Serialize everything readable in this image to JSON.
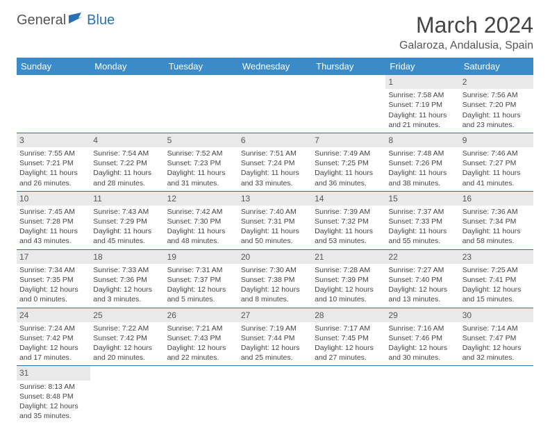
{
  "logo": {
    "part1": "General",
    "part2": "Blue"
  },
  "title": "March 2024",
  "location": "Galaroza, Andalusia, Spain",
  "header_bg": "#3b8bc9",
  "rule_color": "#2a6fb5",
  "daynum_bg": "#e9e9e9",
  "text_color": "#444444",
  "weekdays": [
    "Sunday",
    "Monday",
    "Tuesday",
    "Wednesday",
    "Thursday",
    "Friday",
    "Saturday"
  ],
  "weeks": [
    [
      null,
      null,
      null,
      null,
      null,
      {
        "n": "1",
        "sr": "Sunrise: 7:58 AM",
        "ss": "Sunset: 7:19 PM",
        "d1": "Daylight: 11 hours",
        "d2": "and 21 minutes."
      },
      {
        "n": "2",
        "sr": "Sunrise: 7:56 AM",
        "ss": "Sunset: 7:20 PM",
        "d1": "Daylight: 11 hours",
        "d2": "and 23 minutes."
      }
    ],
    [
      {
        "n": "3",
        "sr": "Sunrise: 7:55 AM",
        "ss": "Sunset: 7:21 PM",
        "d1": "Daylight: 11 hours",
        "d2": "and 26 minutes."
      },
      {
        "n": "4",
        "sr": "Sunrise: 7:54 AM",
        "ss": "Sunset: 7:22 PM",
        "d1": "Daylight: 11 hours",
        "d2": "and 28 minutes."
      },
      {
        "n": "5",
        "sr": "Sunrise: 7:52 AM",
        "ss": "Sunset: 7:23 PM",
        "d1": "Daylight: 11 hours",
        "d2": "and 31 minutes."
      },
      {
        "n": "6",
        "sr": "Sunrise: 7:51 AM",
        "ss": "Sunset: 7:24 PM",
        "d1": "Daylight: 11 hours",
        "d2": "and 33 minutes."
      },
      {
        "n": "7",
        "sr": "Sunrise: 7:49 AM",
        "ss": "Sunset: 7:25 PM",
        "d1": "Daylight: 11 hours",
        "d2": "and 36 minutes."
      },
      {
        "n": "8",
        "sr": "Sunrise: 7:48 AM",
        "ss": "Sunset: 7:26 PM",
        "d1": "Daylight: 11 hours",
        "d2": "and 38 minutes."
      },
      {
        "n": "9",
        "sr": "Sunrise: 7:46 AM",
        "ss": "Sunset: 7:27 PM",
        "d1": "Daylight: 11 hours",
        "d2": "and 41 minutes."
      }
    ],
    [
      {
        "n": "10",
        "sr": "Sunrise: 7:45 AM",
        "ss": "Sunset: 7:28 PM",
        "d1": "Daylight: 11 hours",
        "d2": "and 43 minutes."
      },
      {
        "n": "11",
        "sr": "Sunrise: 7:43 AM",
        "ss": "Sunset: 7:29 PM",
        "d1": "Daylight: 11 hours",
        "d2": "and 45 minutes."
      },
      {
        "n": "12",
        "sr": "Sunrise: 7:42 AM",
        "ss": "Sunset: 7:30 PM",
        "d1": "Daylight: 11 hours",
        "d2": "and 48 minutes."
      },
      {
        "n": "13",
        "sr": "Sunrise: 7:40 AM",
        "ss": "Sunset: 7:31 PM",
        "d1": "Daylight: 11 hours",
        "d2": "and 50 minutes."
      },
      {
        "n": "14",
        "sr": "Sunrise: 7:39 AM",
        "ss": "Sunset: 7:32 PM",
        "d1": "Daylight: 11 hours",
        "d2": "and 53 minutes."
      },
      {
        "n": "15",
        "sr": "Sunrise: 7:37 AM",
        "ss": "Sunset: 7:33 PM",
        "d1": "Daylight: 11 hours",
        "d2": "and 55 minutes."
      },
      {
        "n": "16",
        "sr": "Sunrise: 7:36 AM",
        "ss": "Sunset: 7:34 PM",
        "d1": "Daylight: 11 hours",
        "d2": "and 58 minutes."
      }
    ],
    [
      {
        "n": "17",
        "sr": "Sunrise: 7:34 AM",
        "ss": "Sunset: 7:35 PM",
        "d1": "Daylight: 12 hours",
        "d2": "and 0 minutes."
      },
      {
        "n": "18",
        "sr": "Sunrise: 7:33 AM",
        "ss": "Sunset: 7:36 PM",
        "d1": "Daylight: 12 hours",
        "d2": "and 3 minutes."
      },
      {
        "n": "19",
        "sr": "Sunrise: 7:31 AM",
        "ss": "Sunset: 7:37 PM",
        "d1": "Daylight: 12 hours",
        "d2": "and 5 minutes."
      },
      {
        "n": "20",
        "sr": "Sunrise: 7:30 AM",
        "ss": "Sunset: 7:38 PM",
        "d1": "Daylight: 12 hours",
        "d2": "and 8 minutes."
      },
      {
        "n": "21",
        "sr": "Sunrise: 7:28 AM",
        "ss": "Sunset: 7:39 PM",
        "d1": "Daylight: 12 hours",
        "d2": "and 10 minutes."
      },
      {
        "n": "22",
        "sr": "Sunrise: 7:27 AM",
        "ss": "Sunset: 7:40 PM",
        "d1": "Daylight: 12 hours",
        "d2": "and 13 minutes."
      },
      {
        "n": "23",
        "sr": "Sunrise: 7:25 AM",
        "ss": "Sunset: 7:41 PM",
        "d1": "Daylight: 12 hours",
        "d2": "and 15 minutes."
      }
    ],
    [
      {
        "n": "24",
        "sr": "Sunrise: 7:24 AM",
        "ss": "Sunset: 7:42 PM",
        "d1": "Daylight: 12 hours",
        "d2": "and 17 minutes."
      },
      {
        "n": "25",
        "sr": "Sunrise: 7:22 AM",
        "ss": "Sunset: 7:42 PM",
        "d1": "Daylight: 12 hours",
        "d2": "and 20 minutes."
      },
      {
        "n": "26",
        "sr": "Sunrise: 7:21 AM",
        "ss": "Sunset: 7:43 PM",
        "d1": "Daylight: 12 hours",
        "d2": "and 22 minutes."
      },
      {
        "n": "27",
        "sr": "Sunrise: 7:19 AM",
        "ss": "Sunset: 7:44 PM",
        "d1": "Daylight: 12 hours",
        "d2": "and 25 minutes."
      },
      {
        "n": "28",
        "sr": "Sunrise: 7:17 AM",
        "ss": "Sunset: 7:45 PM",
        "d1": "Daylight: 12 hours",
        "d2": "and 27 minutes."
      },
      {
        "n": "29",
        "sr": "Sunrise: 7:16 AM",
        "ss": "Sunset: 7:46 PM",
        "d1": "Daylight: 12 hours",
        "d2": "and 30 minutes."
      },
      {
        "n": "30",
        "sr": "Sunrise: 7:14 AM",
        "ss": "Sunset: 7:47 PM",
        "d1": "Daylight: 12 hours",
        "d2": "and 32 minutes."
      }
    ],
    [
      {
        "n": "31",
        "sr": "Sunrise: 8:13 AM",
        "ss": "Sunset: 8:48 PM",
        "d1": "Daylight: 12 hours",
        "d2": "and 35 minutes."
      },
      null,
      null,
      null,
      null,
      null,
      null
    ]
  ]
}
